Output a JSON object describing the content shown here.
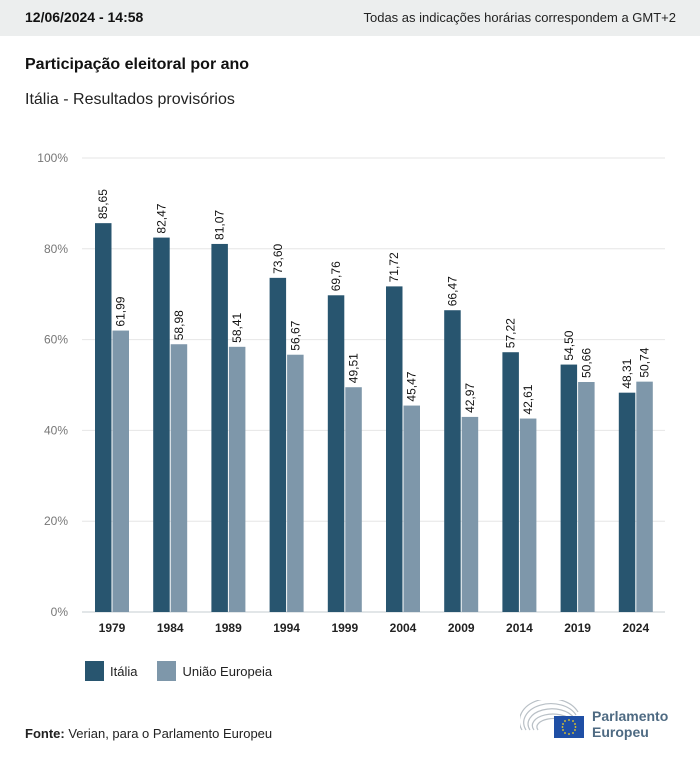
{
  "header": {
    "date": "12/06/2024 - 14:58",
    "timezone_note": "Todas as indicações horárias correspondem a GMT+2"
  },
  "title": "Participação eleitoral por ano",
  "subtitle": "Itália - Resultados provisórios",
  "legend": {
    "items": [
      {
        "label": "Itália",
        "color": "#28556f"
      },
      {
        "label": "União Europeia",
        "color": "#7e97aa"
      }
    ]
  },
  "source": {
    "label": "Fonte:",
    "text": "Verian, para o Parlamento Europeu"
  },
  "logo": {
    "line1": "Parlamento",
    "line2": "Europeu"
  },
  "chart_data": {
    "type": "bar",
    "title": "Participação eleitoral por ano",
    "subtitle": "Itália - Resultados provisórios",
    "xlabel": "",
    "ylabel": "",
    "ylim": [
      0,
      100
    ],
    "yticks": [
      "0%",
      "20%",
      "40%",
      "60%",
      "80%",
      "100%"
    ],
    "ytick_values": [
      0,
      20,
      40,
      60,
      80,
      100
    ],
    "grid": true,
    "legend_position": "bottom-left",
    "categories": [
      "1979",
      "1984",
      "1989",
      "1994",
      "1999",
      "2004",
      "2009",
      "2014",
      "2019",
      "2024"
    ],
    "series": [
      {
        "name": "Itália",
        "color": "#28556f",
        "values": [
          85.65,
          82.47,
          81.07,
          73.6,
          69.76,
          71.72,
          66.47,
          57.22,
          54.5,
          48.31
        ],
        "labels": [
          "85,65",
          "82,47",
          "81,07",
          "73,60",
          "69,76",
          "71,72",
          "66,47",
          "57,22",
          "54,50",
          "48,31"
        ]
      },
      {
        "name": "União Europeia",
        "color": "#7e97aa",
        "values": [
          61.99,
          58.98,
          58.41,
          56.67,
          49.51,
          45.47,
          42.97,
          42.61,
          50.66,
          50.74
        ],
        "labels": [
          "61,99",
          "58,98",
          "58,41",
          "56,67",
          "49,51",
          "45,47",
          "42,97",
          "42,61",
          "50,66",
          "50,74"
        ]
      }
    ]
  }
}
